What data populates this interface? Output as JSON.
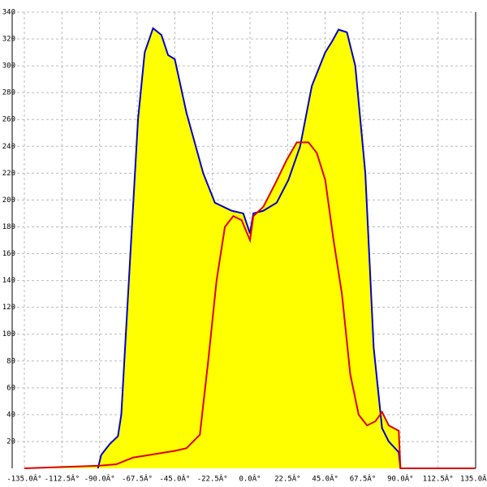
{
  "chart_data": {
    "type": "area-line",
    "xlim": [
      -135,
      135
    ],
    "ylim": [
      0,
      340
    ],
    "xticks": [
      {
        "value": -135,
        "label": "-135.0Â°"
      },
      {
        "value": -112.5,
        "label": "-112.5Â°"
      },
      {
        "value": -90,
        "label": "-90.0Â°"
      },
      {
        "value": -67.5,
        "label": "-67.5Â°"
      },
      {
        "value": -45,
        "label": "-45.0Â°"
      },
      {
        "value": -22.5,
        "label": "-22.5Â°"
      },
      {
        "value": 0,
        "label": "0.0Â°"
      },
      {
        "value": 22.5,
        "label": "22.5Â°"
      },
      {
        "value": 45,
        "label": "45.0Â°"
      },
      {
        "value": 67.5,
        "label": "67.5Â°"
      },
      {
        "value": 90,
        "label": "90.0Â°"
      },
      {
        "value": 112.5,
        "label": "112.5Â°"
      },
      {
        "value": 135,
        "label": "135.0Â°"
      }
    ],
    "yticks": [
      20,
      40,
      60,
      80,
      100,
      120,
      140,
      160,
      180,
      200,
      220,
      240,
      260,
      280,
      300,
      320,
      340
    ],
    "grid": true,
    "fill_color": "#ffff00",
    "series": [
      {
        "color": "#0000cc",
        "x": [
          -91,
          -89,
          -84,
          -79,
          -77,
          -72,
          -67,
          -63,
          -58,
          -53,
          -49,
          -45,
          -38,
          -28,
          -21,
          -16,
          -11,
          -4,
          0,
          2,
          8,
          16,
          23,
          30,
          37,
          45,
          49,
          53,
          58,
          63,
          69,
          74,
          79,
          83,
          89,
          90
        ],
        "values": [
          0,
          10,
          18,
          24,
          40,
          150,
          260,
          310,
          328,
          323,
          308,
          305,
          265,
          220,
          198,
          195,
          192,
          190,
          175,
          190,
          192,
          198,
          215,
          240,
          285,
          310,
          318,
          327,
          325,
          300,
          220,
          90,
          30,
          20,
          12,
          0
        ]
      },
      {
        "color": "#dd0000",
        "x": [
          -135,
          -90,
          -80,
          -70,
          -60,
          -50,
          -45,
          -38,
          -30,
          -25,
          -20,
          -15,
          -10,
          -5,
          0,
          2,
          8,
          15,
          22,
          28,
          35,
          40,
          45,
          50,
          55,
          60,
          65,
          70,
          75,
          79,
          83,
          89,
          90,
          135
        ],
        "values": [
          0,
          2,
          3,
          8,
          10,
          12,
          13,
          15,
          25,
          80,
          140,
          180,
          188,
          185,
          170,
          188,
          195,
          212,
          230,
          243,
          243,
          235,
          215,
          170,
          130,
          70,
          40,
          32,
          35,
          42,
          32,
          28,
          0,
          0
        ]
      }
    ]
  }
}
